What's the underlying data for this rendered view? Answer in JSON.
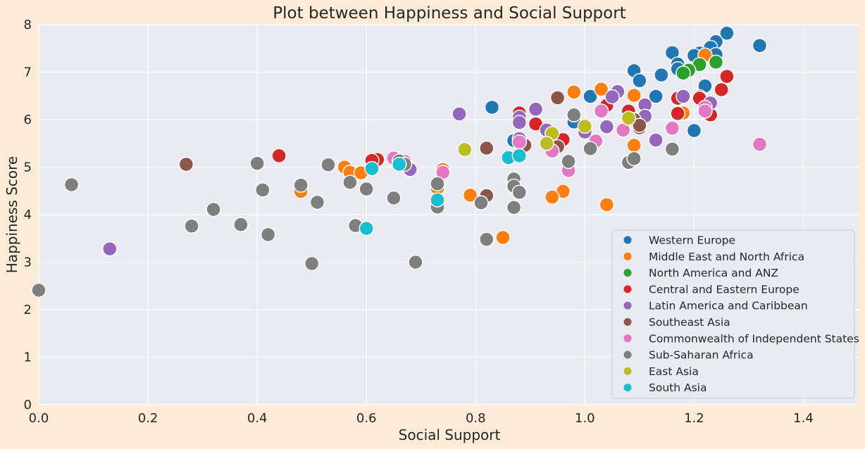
{
  "chart_data": {
    "type": "scatter",
    "title": "Plot between Happiness and Social Support",
    "xlabel": "Social Support",
    "ylabel": "Happiness Score",
    "xlim": [
      0,
      1.5
    ],
    "ylim": [
      0,
      8
    ],
    "xticks": [
      "0.0",
      "0.2",
      "0.4",
      "0.6",
      "0.8",
      "1.0",
      "1.2",
      "1.4"
    ],
    "yticks": [
      "0",
      "1",
      "2",
      "3",
      "4",
      "5",
      "6",
      "7",
      "8"
    ],
    "grid": true,
    "legend_position": "bottom-right",
    "series": [
      {
        "name": "Western Europe",
        "color": "#1f77b4",
        "points": [
          [
            1.26,
            7.82
          ],
          [
            1.24,
            7.64
          ],
          [
            1.23,
            7.52
          ],
          [
            1.21,
            7.4
          ],
          [
            1.2,
            7.35
          ],
          [
            1.24,
            7.37
          ],
          [
            1.32,
            7.56
          ],
          [
            1.16,
            7.41
          ],
          [
            1.17,
            7.17
          ],
          [
            1.17,
            7.07
          ],
          [
            1.09,
            7.03
          ],
          [
            1.14,
            6.94
          ],
          [
            1.1,
            6.82
          ],
          [
            1.22,
            6.71
          ],
          [
            1.13,
            6.49
          ],
          [
            1.01,
            6.49
          ],
          [
            0.83,
            6.26
          ],
          [
            0.98,
            5.95
          ],
          [
            1.2,
            5.77
          ],
          [
            0.87,
            5.56
          ]
        ]
      },
      {
        "name": "Middle East and North Africa",
        "color": "#ff7f0e",
        "points": [
          [
            1.22,
            7.36
          ],
          [
            0.98,
            6.58
          ],
          [
            1.03,
            6.64
          ],
          [
            1.09,
            6.51
          ],
          [
            1.18,
            6.14
          ],
          [
            1.09,
            5.46
          ],
          [
            0.56,
            5.0
          ],
          [
            0.57,
            4.89
          ],
          [
            0.59,
            4.88
          ],
          [
            0.74,
            4.95
          ],
          [
            0.48,
            4.49
          ],
          [
            0.73,
            4.56
          ],
          [
            0.79,
            4.41
          ],
          [
            0.96,
            4.49
          ],
          [
            0.94,
            4.37
          ],
          [
            1.04,
            4.21
          ],
          [
            0.85,
            3.52
          ]
        ]
      },
      {
        "name": "North America and ANZ",
        "color": "#2ca02c",
        "points": [
          [
            1.24,
            7.21
          ],
          [
            1.21,
            7.16
          ],
          [
            1.19,
            7.04
          ],
          [
            1.18,
            6.98
          ]
        ]
      },
      {
        "name": "Central and Eastern Europe",
        "color": "#d62728",
        "points": [
          [
            1.26,
            6.91
          ],
          [
            1.25,
            6.63
          ],
          [
            1.21,
            6.48
          ],
          [
            1.21,
            6.45
          ],
          [
            1.17,
            6.45
          ],
          [
            1.04,
            6.3
          ],
          [
            1.08,
            6.18
          ],
          [
            0.88,
            6.14
          ],
          [
            1.23,
            6.1
          ],
          [
            1.17,
            6.13
          ],
          [
            0.91,
            5.91
          ],
          [
            1.1,
            5.83
          ],
          [
            0.96,
            5.58
          ],
          [
            0.44,
            5.24
          ],
          [
            0.62,
            5.16
          ],
          [
            0.61,
            5.14
          ]
        ]
      },
      {
        "name": "Latin America and Caribbean",
        "color": "#9467bd",
        "points": [
          [
            1.23,
            6.35
          ],
          [
            1.18,
            6.49
          ],
          [
            1.06,
            6.59
          ],
          [
            1.05,
            6.48
          ],
          [
            1.11,
            6.31
          ],
          [
            0.91,
            6.22
          ],
          [
            0.77,
            6.12
          ],
          [
            0.88,
            6.05
          ],
          [
            1.11,
            6.07
          ],
          [
            0.88,
            5.94
          ],
          [
            1.0,
            5.74
          ],
          [
            1.04,
            5.85
          ],
          [
            0.93,
            5.78
          ],
          [
            1.13,
            5.57
          ],
          [
            0.88,
            5.6
          ],
          [
            0.68,
            4.95
          ],
          [
            0.13,
            3.28
          ]
        ]
      },
      {
        "name": "Southeast Asia",
        "color": "#8c564b",
        "points": [
          [
            0.95,
            6.46
          ],
          [
            1.09,
            6.0
          ],
          [
            1.1,
            5.88
          ],
          [
            0.95,
            5.43
          ],
          [
            0.89,
            5.46
          ],
          [
            0.82,
            5.4
          ],
          [
            0.27,
            5.06
          ],
          [
            0.82,
            4.4
          ]
        ]
      },
      {
        "name": "Commonwealth of Independent States",
        "color": "#e377c2",
        "points": [
          [
            1.22,
            6.26
          ],
          [
            1.22,
            6.18
          ],
          [
            1.03,
            6.18
          ],
          [
            1.16,
            5.82
          ],
          [
            1.07,
            5.78
          ],
          [
            1.02,
            5.55
          ],
          [
            0.88,
            5.53
          ],
          [
            0.94,
            5.34
          ],
          [
            1.32,
            5.48
          ],
          [
            0.65,
            5.19
          ],
          [
            0.67,
            5.12
          ],
          [
            0.97,
            4.93
          ],
          [
            0.74,
            4.89
          ]
        ]
      },
      {
        "name": "Sub-Saharan Africa",
        "color": "#7f7f7f",
        "points": [
          [
            0.98,
            6.1
          ],
          [
            1.16,
            5.38
          ],
          [
            1.01,
            5.39
          ],
          [
            0.97,
            5.12
          ],
          [
            1.08,
            5.1
          ],
          [
            1.09,
            5.18
          ],
          [
            0.4,
            5.08
          ],
          [
            0.53,
            5.05
          ],
          [
            0.66,
            5.13
          ],
          [
            0.67,
            5.06
          ],
          [
            0.06,
            4.63
          ],
          [
            0.48,
            4.62
          ],
          [
            0.57,
            4.68
          ],
          [
            0.6,
            4.54
          ],
          [
            0.41,
            4.52
          ],
          [
            0.73,
            4.65
          ],
          [
            0.87,
            4.75
          ],
          [
            0.87,
            4.6
          ],
          [
            0.88,
            4.47
          ],
          [
            0.65,
            4.35
          ],
          [
            0.51,
            4.26
          ],
          [
            0.81,
            4.25
          ],
          [
            0.87,
            4.15
          ],
          [
            0.73,
            4.16
          ],
          [
            0.32,
            4.11
          ],
          [
            0.28,
            3.76
          ],
          [
            0.37,
            3.79
          ],
          [
            0.58,
            3.77
          ],
          [
            0.42,
            3.58
          ],
          [
            0.82,
            3.48
          ],
          [
            0.5,
            2.97
          ],
          [
            0.69,
            3.0
          ],
          [
            0.0,
            2.41
          ]
        ]
      },
      {
        "name": "East Asia",
        "color": "#bcbd22",
        "points": [
          [
            1.08,
            6.03
          ],
          [
            1.0,
            5.86
          ],
          [
            0.94,
            5.71
          ],
          [
            0.93,
            5.5
          ],
          [
            0.78,
            5.37
          ]
        ]
      },
      {
        "name": "South Asia",
        "color": "#17becf",
        "points": [
          [
            0.61,
            4.97
          ],
          [
            0.66,
            5.06
          ],
          [
            0.86,
            5.2
          ],
          [
            0.88,
            5.24
          ],
          [
            0.6,
            3.71
          ],
          [
            0.73,
            4.31
          ]
        ]
      }
    ]
  }
}
